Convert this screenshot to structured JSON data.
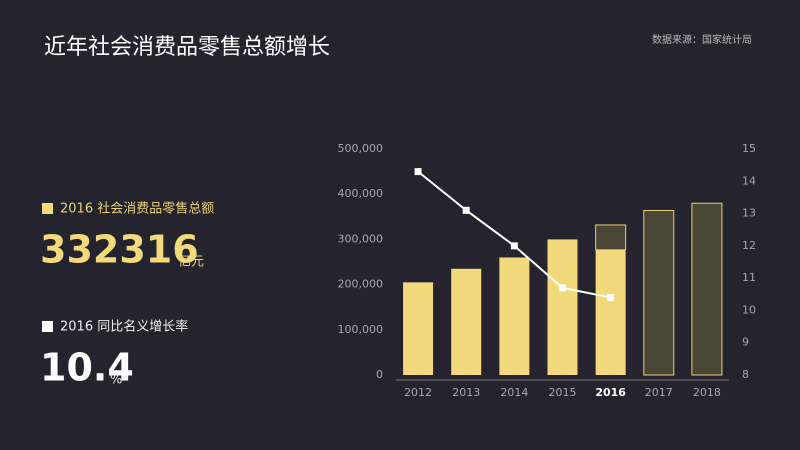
{
  "header": {
    "title": "近年社会消费品零售总额增长",
    "source": "数据来源：国家统计局"
  },
  "stats": [
    {
      "label": "2016 社会消费品零售总额",
      "value": "332316",
      "unit": "亿元"
    },
    {
      "label": "2016 同比名义增长率",
      "value": "10.4",
      "unit": "%"
    }
  ],
  "chart_data": {
    "type": "bar",
    "categories": [
      "2012",
      "2013",
      "2014",
      "2015",
      "2016",
      "2017",
      "2018"
    ],
    "series": [
      {
        "color": "#f1d97c",
        "values": [
          205000,
          235000,
          260000,
          300000,
          277000,
          null,
          null
        ]
      },
      {
        "color": "#4b4536",
        "outline": "#e6cf76",
        "values": [
          null,
          null,
          null,
          null,
          55000,
          364000,
          380000
        ]
      },
      {
        "type": "line",
        "axis": "y2",
        "color": "#ffffff",
        "values": [
          14.3,
          13.1,
          12.0,
          10.7,
          10.4,
          null,
          null
        ]
      }
    ],
    "ylim": [
      0,
      500000
    ],
    "yticks": [
      0,
      {
        "value": 100000,
        "label": "100,000"
      },
      {
        "value": 200000,
        "label": "200,000"
      },
      {
        "value": 300000,
        "label": "300,000"
      },
      {
        "value": 400000,
        "label": "400,000"
      },
      {
        "value": 500000,
        "label": "500,000"
      }
    ],
    "y2lim": [
      8,
      15
    ],
    "y2ticks": [
      8,
      9,
      10,
      11,
      12,
      13,
      14,
      15
    ],
    "highlight": "2016"
  }
}
